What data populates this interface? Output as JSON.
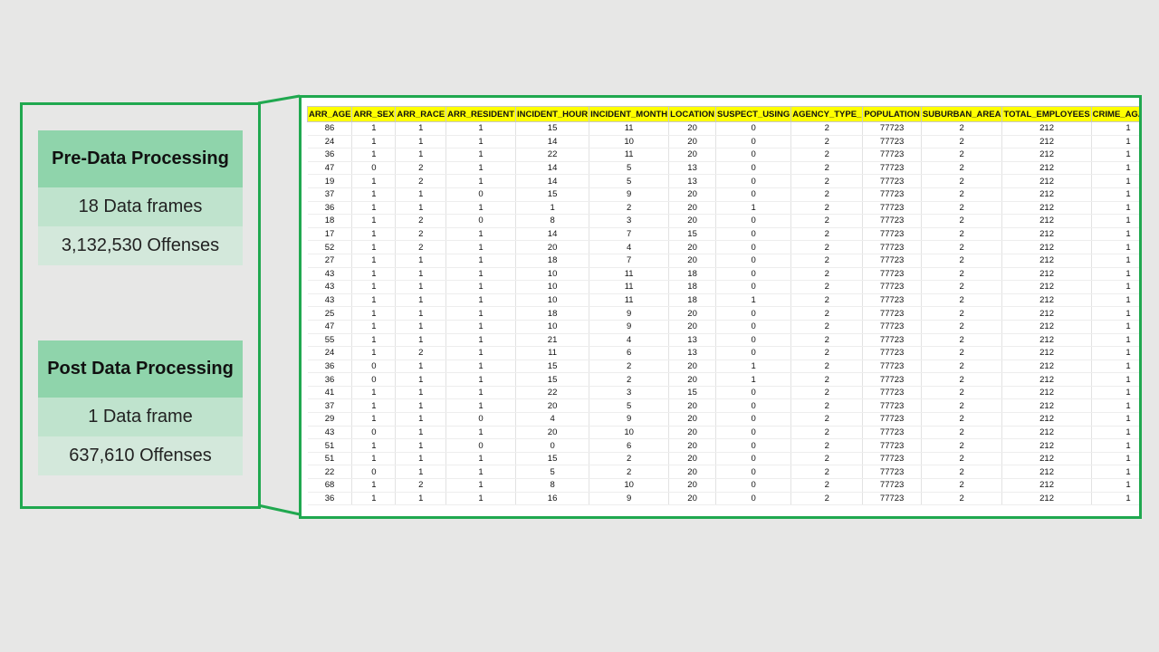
{
  "pre": {
    "title": "Pre-Data Processing",
    "frames": "18 Data frames",
    "offenses": "3,132,530 Offenses"
  },
  "post": {
    "title": "Post Data Processing",
    "frames": "1 Data frame",
    "offenses": "637,610 Offenses"
  },
  "table": {
    "headers": [
      "ARR_AGE",
      "ARR_SEX",
      "ARR_RACE",
      "ARR_RESIDENT",
      "INCIDENT_HOUR",
      "INCIDENT_MONTH",
      "LOCATION",
      "SUSPECT_USING",
      "AGENCY_TYPE_",
      "POPULATION",
      "SUBURBAN_AREA",
      "TOTAL_EMPLOYEES",
      "CRIME_AGAINST"
    ],
    "rows": [
      [
        "86",
        "1",
        "1",
        "1",
        "15",
        "11",
        "20",
        "0",
        "2",
        "77723",
        "2",
        "212",
        "1"
      ],
      [
        "24",
        "1",
        "1",
        "1",
        "14",
        "10",
        "20",
        "0",
        "2",
        "77723",
        "2",
        "212",
        "1"
      ],
      [
        "36",
        "1",
        "1",
        "1",
        "22",
        "11",
        "20",
        "0",
        "2",
        "77723",
        "2",
        "212",
        "1"
      ],
      [
        "47",
        "0",
        "2",
        "1",
        "14",
        "5",
        "13",
        "0",
        "2",
        "77723",
        "2",
        "212",
        "1"
      ],
      [
        "19",
        "1",
        "2",
        "1",
        "14",
        "5",
        "13",
        "0",
        "2",
        "77723",
        "2",
        "212",
        "1"
      ],
      [
        "37",
        "1",
        "1",
        "0",
        "15",
        "9",
        "20",
        "0",
        "2",
        "77723",
        "2",
        "212",
        "1"
      ],
      [
        "36",
        "1",
        "1",
        "1",
        "1",
        "2",
        "20",
        "1",
        "2",
        "77723",
        "2",
        "212",
        "1"
      ],
      [
        "18",
        "1",
        "2",
        "0",
        "8",
        "3",
        "20",
        "0",
        "2",
        "77723",
        "2",
        "212",
        "1"
      ],
      [
        "17",
        "1",
        "2",
        "1",
        "14",
        "7",
        "15",
        "0",
        "2",
        "77723",
        "2",
        "212",
        "1"
      ],
      [
        "52",
        "1",
        "2",
        "1",
        "20",
        "4",
        "20",
        "0",
        "2",
        "77723",
        "2",
        "212",
        "1"
      ],
      [
        "27",
        "1",
        "1",
        "1",
        "18",
        "7",
        "20",
        "0",
        "2",
        "77723",
        "2",
        "212",
        "1"
      ],
      [
        "43",
        "1",
        "1",
        "1",
        "10",
        "11",
        "18",
        "0",
        "2",
        "77723",
        "2",
        "212",
        "1"
      ],
      [
        "43",
        "1",
        "1",
        "1",
        "10",
        "11",
        "18",
        "0",
        "2",
        "77723",
        "2",
        "212",
        "1"
      ],
      [
        "43",
        "1",
        "1",
        "1",
        "10",
        "11",
        "18",
        "1",
        "2",
        "77723",
        "2",
        "212",
        "1"
      ],
      [
        "25",
        "1",
        "1",
        "1",
        "18",
        "9",
        "20",
        "0",
        "2",
        "77723",
        "2",
        "212",
        "1"
      ],
      [
        "47",
        "1",
        "1",
        "1",
        "10",
        "9",
        "20",
        "0",
        "2",
        "77723",
        "2",
        "212",
        "1"
      ],
      [
        "55",
        "1",
        "1",
        "1",
        "21",
        "4",
        "13",
        "0",
        "2",
        "77723",
        "2",
        "212",
        "1"
      ],
      [
        "24",
        "1",
        "2",
        "1",
        "11",
        "6",
        "13",
        "0",
        "2",
        "77723",
        "2",
        "212",
        "1"
      ],
      [
        "36",
        "0",
        "1",
        "1",
        "15",
        "2",
        "20",
        "1",
        "2",
        "77723",
        "2",
        "212",
        "1"
      ],
      [
        "36",
        "0",
        "1",
        "1",
        "15",
        "2",
        "20",
        "1",
        "2",
        "77723",
        "2",
        "212",
        "1"
      ],
      [
        "41",
        "1",
        "1",
        "1",
        "22",
        "3",
        "15",
        "0",
        "2",
        "77723",
        "2",
        "212",
        "1"
      ],
      [
        "37",
        "1",
        "1",
        "1",
        "20",
        "5",
        "20",
        "0",
        "2",
        "77723",
        "2",
        "212",
        "1"
      ],
      [
        "29",
        "1",
        "1",
        "0",
        "4",
        "9",
        "20",
        "0",
        "2",
        "77723",
        "2",
        "212",
        "1"
      ],
      [
        "43",
        "0",
        "1",
        "1",
        "20",
        "10",
        "20",
        "0",
        "2",
        "77723",
        "2",
        "212",
        "1"
      ],
      [
        "51",
        "1",
        "1",
        "0",
        "0",
        "6",
        "20",
        "0",
        "2",
        "77723",
        "2",
        "212",
        "1"
      ],
      [
        "51",
        "1",
        "1",
        "1",
        "15",
        "2",
        "20",
        "0",
        "2",
        "77723",
        "2",
        "212",
        "1"
      ],
      [
        "22",
        "0",
        "1",
        "1",
        "5",
        "2",
        "20",
        "0",
        "2",
        "77723",
        "2",
        "212",
        "1"
      ],
      [
        "68",
        "1",
        "2",
        "1",
        "8",
        "10",
        "20",
        "0",
        "2",
        "77723",
        "2",
        "212",
        "1"
      ],
      [
        "36",
        "1",
        "1",
        "1",
        "16",
        "9",
        "20",
        "0",
        "2",
        "77723",
        "2",
        "212",
        "1"
      ]
    ]
  }
}
